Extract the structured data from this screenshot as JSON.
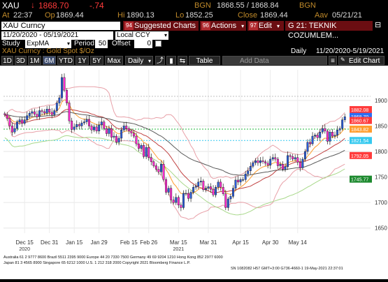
{
  "header": {
    "ticker": "XAU",
    "last_price": "1868.70",
    "change": "-.74",
    "bgn_label": "BGN",
    "bid_ask": "1868.55 / 1868.84",
    "source": "BGN",
    "at_label": "At",
    "at_value": "22:37",
    "op_label": "Op",
    "op_value": "1869.44",
    "hi_label": "Hi",
    "hi_value": "1890.13",
    "lo_label": "Lo",
    "lo_value": "1852.25",
    "close_label": "Close",
    "close_value": "1869.44",
    "as_of_label": "Aav",
    "as_of_value": "05/21/21"
  },
  "toolbar": {
    "security": "XAU Curncy",
    "date_range": "11/20/2020 - 05/19/2021",
    "currency": "Local CCY",
    "menu": [
      {
        "num": "94",
        "label": "Suggested Charts"
      },
      {
        "num": "96",
        "label": "Actions"
      },
      {
        "num": "97",
        "label": "Edit"
      }
    ],
    "screen_title": "G 21: TEKNIK COZUMLEM...",
    "study_label": "Study",
    "study_value": "ExpMA",
    "period_label": "Period",
    "period_value": "50",
    "offset_label": "Offset",
    "offset_value": "0"
  },
  "chart_header": {
    "title": "XAU Curncy : Gold Spot  $/Oz",
    "frequency": "Daily",
    "range": "11/20/2020-5/19/2021"
  },
  "period_buttons": [
    "1D",
    "3D",
    "1M",
    "6M",
    "YTD",
    "1Y",
    "5Y",
    "Max"
  ],
  "period_selected": "6M",
  "frequency_select": "Daily",
  "table_button": "Table",
  "add_data_placeholder": "Add Data",
  "edit_chart_button": "Edit Chart",
  "chart_data": {
    "type": "line",
    "y_ticks": [
      1650,
      1700,
      1750,
      1800,
      1850,
      1900
    ],
    "x_ticks": [
      "Dec 15",
      "Dec 31",
      "Jan 15",
      "Jan 29",
      "Feb 15",
      "Feb 26",
      "Mar 15",
      "Mar 31",
      "Apr 15",
      "Apr 30",
      "May 14"
    ],
    "x_years": [
      {
        "label": "2020",
        "under": "Dec 15"
      },
      {
        "label": "2021",
        "under": "Mar 15"
      }
    ],
    "ylim": [
      1640,
      1960
    ],
    "price_labels": [
      {
        "value": 1882.08,
        "text": "1882.08",
        "color": "#ff3b3b"
      },
      {
        "value": 1868.7,
        "text": "1868.70",
        "color": "#2a6df4"
      },
      {
        "value": 1860.67,
        "text": "1860.67",
        "color": "#ff3b3b"
      },
      {
        "value": 1843.82,
        "text": "1843.82",
        "color": "#ff9d2e"
      },
      {
        "value": 1821.54,
        "text": "1821.54",
        "color": "#35c9ef"
      },
      {
        "value": 1792.05,
        "text": "1792.05",
        "color": "#ff3b3b"
      },
      {
        "value": 1745.77,
        "text": "1745.77",
        "color": "#1d8a2f"
      }
    ],
    "hlines": [
      {
        "value": 1908,
        "color": "#c0c0c0"
      },
      {
        "value": 1843.82,
        "color": "#1db83a"
      },
      {
        "value": 1821.54,
        "color": "#35c9ef"
      }
    ],
    "closes": [
      1872,
      1865,
      1850,
      1838,
      1845,
      1858,
      1862,
      1855,
      1862,
      1870,
      1875,
      1878,
      1873,
      1868,
      1880,
      1878,
      1875,
      1883,
      1877,
      1872,
      1880,
      1895,
      1905,
      1945,
      1920,
      1895,
      1860,
      1843,
      1848,
      1853,
      1850,
      1856,
      1858,
      1863,
      1850,
      1842,
      1848,
      1840,
      1852,
      1858,
      1845,
      1835,
      1845,
      1828,
      1830,
      1818,
      1826,
      1842,
      1850,
      1845,
      1840,
      1836,
      1830,
      1815,
      1806,
      1812,
      1790,
      1808,
      1788,
      1780,
      1772,
      1765,
      1760,
      1775,
      1745,
      1720,
      1728,
      1705,
      1700,
      1710,
      1695,
      1690,
      1718,
      1718,
      1708,
      1720,
      1730,
      1732,
      1740,
      1742,
      1725,
      1728,
      1731,
      1726,
      1715,
      1730,
      1740,
      1730,
      1717,
      1690,
      1707,
      1712,
      1728,
      1744,
      1740,
      1745,
      1745,
      1756,
      1762,
      1771,
      1778,
      1782,
      1778,
      1782,
      1780,
      1777,
      1773,
      1785,
      1788,
      1785,
      1772,
      1775,
      1765,
      1770,
      1792,
      1790,
      1785,
      1788,
      1779,
      1768,
      1785,
      1800,
      1818,
      1815,
      1830,
      1832,
      1827,
      1838,
      1845,
      1840,
      1820,
      1838,
      1830,
      1832,
      1842,
      1845,
      1862,
      1868
    ]
  },
  "footer": {
    "line1": "Australia 61 2 9777 8600  Brazil 5511 2395 9000  Europe 44 20 7330 7500  Germany 49 69 9204 1210  Hong Kong 852 2977 6000",
    "line2": "Japan 81 3 4565 8900        Singapore 65 6212 1000        U.S. 1 212 318 2000        Copyright 2021 Bloomberg Finance L.P.",
    "line3": "SN 1082082 H57 GMT+3:00 G736-4660-1 19-May-2021 22:37:01"
  },
  "colors": {
    "up": "#2a5bd7",
    "down": "#ff2bd0",
    "ema_short": "#ff9d2e",
    "ema_long": "#5a5a5a",
    "ema_mid": "#c04040",
    "bollinger": "#e8a0a8",
    "envelope": "#a8d88a"
  }
}
